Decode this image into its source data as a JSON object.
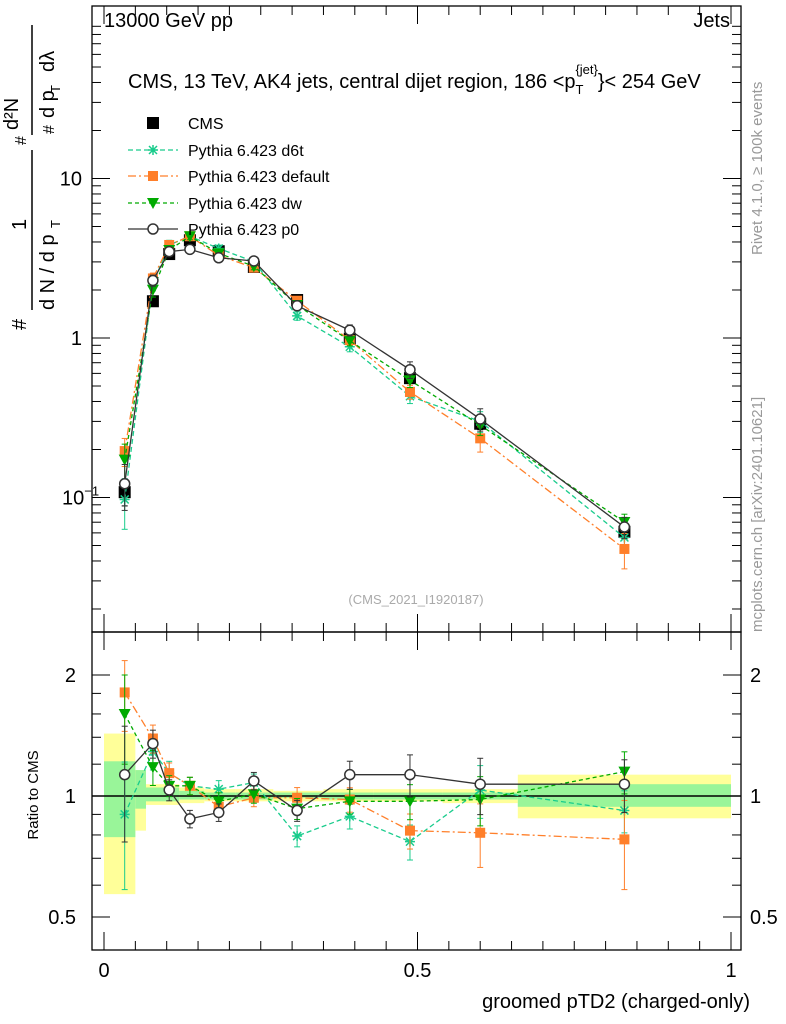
{
  "header": {
    "energy": "13000 GeV pp",
    "category": "Jets"
  },
  "side_labels": {
    "rivet": "Rivet 4.1.0, ≥ 100k events",
    "source": "mcplots.cern.ch [arXiv:2401.10621]"
  },
  "chart_data": [
    {
      "type": "line",
      "title": "CMS, 13 TeV, AK4 jets, central dijet region, 186 < p_T^{jet} < 254 GeV",
      "title_parts": {
        "main": "CMS, 13 TeV, AK4 jets, central dijet region, 186 <p",
        "sub": "T",
        "sup": "{jet}",
        "tail": "}< 254 GeV"
      },
      "ylabel": "1/(dN/dp_T) d²N/(dp_T dλ)",
      "ylabel_parts": {
        "frac_num": "1",
        "frac_den": "d N / d p",
        "frac_den_sub": "T",
        "d2N": "d²N",
        "dpt": "d p",
        "dl": "dλ",
        "hash": "#"
      },
      "yscale": "log",
      "ylim": [
        0.017,
        90
      ],
      "yticks": [
        {
          "v": 0.1,
          "label": "10",
          "exp": "−1"
        },
        {
          "v": 1,
          "label": "1",
          "exp": ""
        },
        {
          "v": 10,
          "label": "10",
          "exp": ""
        }
      ],
      "watermark": "(CMS_2021_I1920187)",
      "legend_position": "top-left",
      "x": [
        0.033,
        0.078,
        0.104,
        0.137,
        0.183,
        0.239,
        0.308,
        0.392,
        0.488,
        0.6,
        0.83
      ],
      "data": {
        "name": "CMS",
        "values": [
          0.108,
          1.7,
          3.36,
          4.1,
          3.5,
          2.79,
          1.73,
          0.99,
          0.56,
          0.29,
          0.061
        ],
        "rel_err": [
          0.18,
          0.06,
          0.04,
          0.04,
          0.04,
          0.04,
          0.05,
          0.05,
          0.07,
          0.08,
          0.1
        ]
      },
      "series": [
        {
          "name": "Pythia 6.423 d6t",
          "color": "#19cc8c",
          "marker": "star",
          "dash": "5,3"
        },
        {
          "name": "Pythia 6.423 default",
          "color": "#ff7f2a",
          "marker": "square",
          "dash": "8,3,2,3"
        },
        {
          "name": "Pythia 6.423 dw",
          "color": "#00aa00",
          "marker": "triangle",
          "dash": "4,3"
        },
        {
          "name": "Pythia 6.423 p0",
          "color": "#333333",
          "marker": "circle",
          "dash": ""
        }
      ]
    },
    {
      "type": "line",
      "ylabel": "Ratio to CMS",
      "xlabel": "groomed pTD2 (charged-only)",
      "yscale": "log",
      "ylim": [
        0.42,
        2.4
      ],
      "yticks": [
        {
          "v": 0.5,
          "label": "0.5"
        },
        {
          "v": 1,
          "label": "1"
        },
        {
          "v": 2,
          "label": "2"
        }
      ],
      "xlim": [
        -0.02,
        1.013
      ],
      "xticks": [
        {
          "v": 0,
          "label": "0"
        },
        {
          "v": 0.5,
          "label": "0.5"
        },
        {
          "v": 1,
          "label": "1"
        }
      ],
      "x": [
        0.033,
        0.078,
        0.104,
        0.137,
        0.183,
        0.239,
        0.308,
        0.392,
        0.488,
        0.6,
        0.83
      ],
      "bin_edges": [
        0,
        0.05,
        0.067,
        0.12,
        0.16,
        0.21,
        0.27,
        0.35,
        0.43,
        0.54,
        0.66,
        1.0
      ],
      "band_total": [
        [
          0.57,
          1.43
        ],
        [
          0.82,
          1.16
        ],
        [
          0.95,
          1.07
        ],
        [
          0.96,
          1.05
        ],
        [
          0.97,
          1.04
        ],
        [
          0.97,
          1.04
        ],
        [
          0.97,
          1.03
        ],
        [
          0.97,
          1.04
        ],
        [
          0.97,
          1.04
        ],
        [
          0.96,
          1.04
        ],
        [
          0.88,
          1.13
        ]
      ],
      "band_stat": [
        [
          0.79,
          1.22
        ],
        [
          0.93,
          1.16
        ],
        [
          0.97,
          1.05
        ],
        [
          0.98,
          1.03
        ],
        [
          0.98,
          1.02
        ],
        [
          0.98,
          1.02
        ],
        [
          0.99,
          1.02
        ],
        [
          0.98,
          1.02
        ],
        [
          0.98,
          1.02
        ],
        [
          0.98,
          1.02
        ],
        [
          0.94,
          1.07
        ]
      ],
      "series": [
        {
          "name": "Pythia 6.423 d6t",
          "ratio": [
            0.9,
            1.29,
            1.14,
            1.06,
            1.04,
            1.08,
            0.795,
            0.89,
            0.77,
            1.035,
            0.92
          ],
          "rel_err": [
            0.35,
            0.1,
            0.07,
            0.05,
            0.05,
            0.05,
            0.06,
            0.07,
            0.1,
            0.15,
            0.12
          ]
        },
        {
          "name": "Pythia 6.423 default",
          "ratio": [
            1.81,
            1.39,
            1.14,
            1.06,
            0.94,
            0.99,
            0.99,
            0.98,
            0.82,
            0.81,
            0.78
          ],
          "rel_err": [
            0.2,
            0.08,
            0.06,
            0.05,
            0.05,
            0.05,
            0.06,
            0.07,
            0.1,
            0.18,
            0.25
          ]
        },
        {
          "name": "Pythia 6.423 dw",
          "ratio": [
            1.6,
            1.18,
            1.06,
            1.06,
            0.97,
            1.01,
            0.93,
            0.97,
            0.97,
            0.98,
            1.15
          ],
          "rel_err": [
            0.25,
            0.1,
            0.06,
            0.05,
            0.05,
            0.05,
            0.06,
            0.07,
            0.1,
            0.14,
            0.12
          ]
        },
        {
          "name": "Pythia 6.423 p0",
          "ratio": [
            1.13,
            1.35,
            1.035,
            0.877,
            0.91,
            1.09,
            0.92,
            1.13,
            1.13,
            1.07,
            1.07
          ],
          "rel_err": [
            0.32,
            0.08,
            0.06,
            0.05,
            0.05,
            0.05,
            0.06,
            0.08,
            0.12,
            0.16,
            0.15
          ]
        }
      ]
    }
  ]
}
